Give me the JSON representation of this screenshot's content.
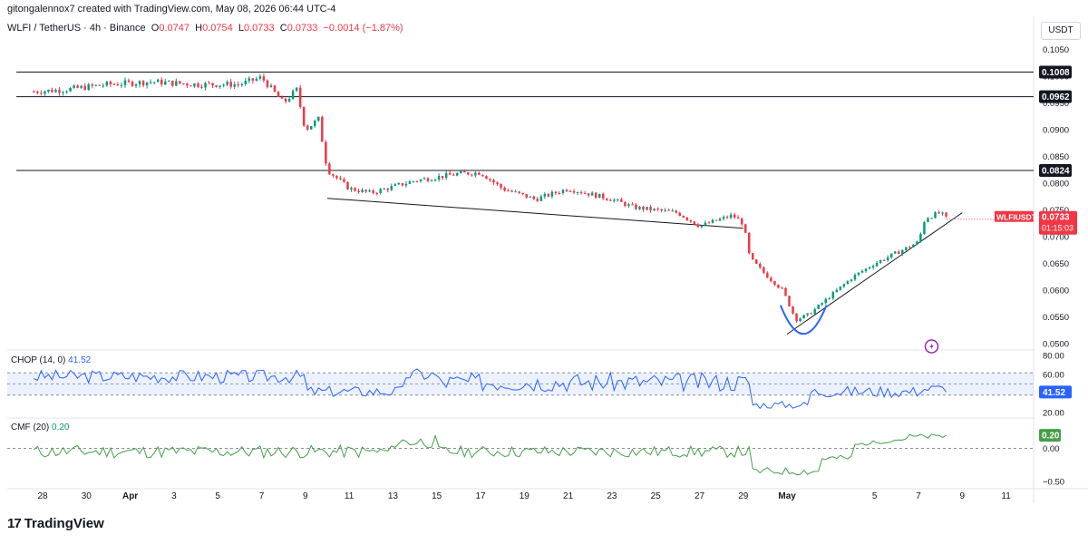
{
  "header": {
    "created_by": "gitongalennox7 created with TradingView.com, May 08, 2026 06:44 UTC-4"
  },
  "symbol_bar": {
    "name": "WLFI / TetherUS · 4h · Binance",
    "o_label": "O",
    "o": "0.0747",
    "h_label": "H",
    "h": "0.0754",
    "l_label": "L",
    "l": "0.0733",
    "c_label": "C",
    "c": "0.0733",
    "change": "−0.0014 (−1.87%)"
  },
  "currency_button": "USDT",
  "price_axis": {
    "ticks": [
      "0.1050",
      "0.1000",
      "0.0950",
      "0.0900",
      "0.0850",
      "0.0800",
      "0.0750",
      "0.0700",
      "0.0650",
      "0.0600",
      "0.0550",
      "0.0500"
    ]
  },
  "level_labels": [
    {
      "text": "0.1008",
      "value": 0.1008
    },
    {
      "text": "0.0962",
      "value": 0.0962
    },
    {
      "text": "0.0824",
      "value": 0.0824
    }
  ],
  "last_price_tag": {
    "symbol": "WLFIUSDT",
    "price": "0.0733",
    "countdown": "01:15:03"
  },
  "chop": {
    "label": "CHOP (14, 0)",
    "value": "41.52",
    "value_tag": "41.52",
    "axis": [
      "80.00",
      "60.00",
      "40.00",
      "20.00"
    ],
    "upper": 61.8,
    "lower": 38.2
  },
  "cmf": {
    "label": "CMF (20)",
    "value": "0.20",
    "value_tag": "0.20",
    "axis": [
      "0.00",
      "−0.50"
    ]
  },
  "time_axis": [
    "28",
    "30",
    "Apr",
    "3",
    "5",
    "7",
    "9",
    "11",
    "13",
    "15",
    "17",
    "19",
    "21",
    "23",
    "25",
    "27",
    "29",
    "May",
    "5",
    "7",
    "9",
    "11"
  ],
  "brand": "TradingView",
  "colors": {
    "up": "#089981",
    "down": "#f23645",
    "chop": "#2962ff",
    "cmf": "#43a047",
    "level": "#131722",
    "arc": "#2962ff"
  },
  "chart_data": {
    "type": "candlestick",
    "timeframe": "4h",
    "price_range": [
      0.049,
      0.1075
    ],
    "horizontal_levels": [
      0.1008,
      0.0962,
      0.0824
    ],
    "trendlines": [
      {
        "from": [
          "Apr 10",
          0.0772
        ],
        "to": [
          "Apr 29",
          0.0716
        ]
      },
      {
        "from": [
          "May 1",
          0.0518
        ],
        "to": [
          "May 9",
          0.0745
        ]
      }
    ],
    "close_anchors": [
      [
        "Mar 27",
        0.097
      ],
      [
        "Mar 29",
        0.0975
      ],
      [
        "Mar 31",
        0.0985
      ],
      [
        "Apr 2",
        0.099
      ],
      [
        "Apr 4",
        0.0985
      ],
      [
        "Apr 6",
        0.0985
      ],
      [
        "Apr 7",
        0.0998
      ],
      [
        "Apr 8",
        0.095
      ],
      [
        "Apr 8.6",
        0.0975
      ],
      [
        "Apr 9",
        0.09
      ],
      [
        "Apr 9.6",
        0.092
      ],
      [
        "Apr 10",
        0.0825
      ],
      [
        "Apr 11",
        0.079
      ],
      [
        "Apr 12",
        0.0782
      ],
      [
        "Apr 14",
        0.0805
      ],
      [
        "Apr 16",
        0.0818
      ],
      [
        "Apr 17",
        0.082
      ],
      [
        "Apr 18",
        0.079
      ],
      [
        "Apr 19.5",
        0.077
      ],
      [
        "Apr 21",
        0.079
      ],
      [
        "Apr 22",
        0.078
      ],
      [
        "Apr 23",
        0.077
      ],
      [
        "Apr 24",
        0.0755
      ],
      [
        "Apr 26",
        0.0745
      ],
      [
        "Apr 27",
        0.072
      ],
      [
        "Apr 28.5",
        0.074
      ],
      [
        "Apr 29",
        0.0725
      ],
      [
        "Apr 29.3",
        0.066
      ],
      [
        "Apr 30",
        0.063
      ],
      [
        "Apr 30.8",
        0.06
      ],
      [
        "May 1.4",
        0.0545
      ],
      [
        "May 2",
        0.0555
      ],
      [
        "May 3",
        0.059
      ],
      [
        "May 4",
        0.0625
      ],
      [
        "May 5",
        0.065
      ],
      [
        "May 6",
        0.067
      ],
      [
        "May 7",
        0.069
      ],
      [
        "May 7.3",
        0.0735
      ],
      [
        "May 8",
        0.0745
      ],
      [
        "May 8.3",
        0.0733
      ]
    ],
    "chop_series": {
      "label": "CHOP (14, 0)",
      "last": 41.52,
      "ylim": [
        15,
        85
      ]
    },
    "cmf_series": {
      "label": "CMF (20)",
      "last": 0.2,
      "ylim": [
        -0.6,
        0.45
      ]
    }
  }
}
